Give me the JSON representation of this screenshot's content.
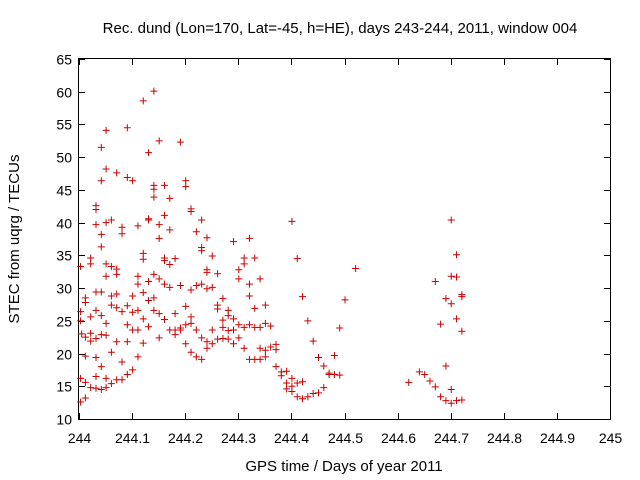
{
  "chart_data": {
    "type": "scatter",
    "title": "Rec. dund (Lon=170, Lat=-45, h=HE), days 243-244, 2011, window 004",
    "xlabel": "GPS time / Days of year 2011",
    "ylabel": "STEC from uqrg / TECUs",
    "xlim": [
      244,
      245
    ],
    "ylim": [
      10,
      65
    ],
    "x_ticks": [
      244,
      244.1,
      244.2,
      244.3,
      244.4,
      244.5,
      244.6,
      244.7,
      244.8,
      244.9,
      245
    ],
    "x_tick_labels": [
      "244",
      "244.1",
      "244.2",
      "244.3",
      "244.4",
      "244.5",
      "244.6",
      "244.7",
      "244.8",
      "244.9",
      "245"
    ],
    "y_ticks": [
      10,
      15,
      20,
      25,
      30,
      35,
      40,
      45,
      50,
      55,
      60,
      65
    ],
    "y_tick_labels": [
      "10",
      "15",
      "20",
      "25",
      "30",
      "35",
      "40",
      "45",
      "50",
      "55",
      "60",
      "65"
    ],
    "grid": false,
    "marker": "plus",
    "color": "#cc0000",
    "points": [
      [
        244.003,
        33.3
      ],
      [
        244.003,
        16.2
      ],
      [
        244.003,
        12.6
      ],
      [
        244.003,
        25.0
      ],
      [
        244.003,
        26.4
      ],
      [
        244.005,
        23.0
      ],
      [
        244.012,
        28.5
      ],
      [
        244.012,
        27.8
      ],
      [
        244.012,
        22.5
      ],
      [
        244.012,
        19.6
      ],
      [
        244.012,
        15.6
      ],
      [
        244.012,
        13.2
      ],
      [
        244.022,
        34.6
      ],
      [
        244.022,
        33.7
      ],
      [
        244.022,
        25.6
      ],
      [
        244.022,
        23.1
      ],
      [
        244.022,
        21.9
      ],
      [
        244.022,
        14.8
      ],
      [
        244.032,
        42.6
      ],
      [
        244.032,
        42.0
      ],
      [
        244.032,
        39.7
      ],
      [
        244.032,
        29.4
      ],
      [
        244.032,
        26.6
      ],
      [
        244.032,
        22.3
      ],
      [
        244.032,
        19.4
      ],
      [
        244.032,
        16.5
      ],
      [
        244.032,
        14.7
      ],
      [
        244.042,
        51.5
      ],
      [
        244.042,
        46.4
      ],
      [
        244.042,
        38.2
      ],
      [
        244.042,
        36.3
      ],
      [
        244.042,
        29.4
      ],
      [
        244.042,
        25.8
      ],
      [
        244.042,
        22.9
      ],
      [
        244.042,
        18.0
      ],
      [
        244.042,
        14.5
      ],
      [
        244.051,
        54.1
      ],
      [
        244.051,
        48.2
      ],
      [
        244.051,
        40.0
      ],
      [
        244.051,
        33.7
      ],
      [
        244.051,
        31.8
      ],
      [
        244.051,
        24.6
      ],
      [
        244.051,
        22.8
      ],
      [
        244.051,
        16.2
      ],
      [
        244.051,
        14.8
      ],
      [
        244.061,
        40.4
      ],
      [
        244.061,
        33.3
      ],
      [
        244.061,
        28.8
      ],
      [
        244.061,
        27.4
      ],
      [
        244.061,
        20.2
      ],
      [
        244.061,
        15.4
      ],
      [
        244.071,
        47.6
      ],
      [
        244.071,
        32.9
      ],
      [
        244.071,
        32.1
      ],
      [
        244.071,
        29.1
      ],
      [
        244.071,
        27.0
      ],
      [
        244.071,
        21.8
      ],
      [
        244.071,
        16.0
      ],
      [
        244.081,
        39.3
      ],
      [
        244.081,
        38.3
      ],
      [
        244.081,
        26.4
      ],
      [
        244.081,
        18.7
      ],
      [
        244.081,
        16.0
      ],
      [
        244.091,
        54.5
      ],
      [
        244.091,
        46.9
      ],
      [
        244.091,
        27.3
      ],
      [
        244.091,
        24.4
      ],
      [
        244.091,
        21.8
      ],
      [
        244.091,
        16.8
      ],
      [
        244.101,
        46.4
      ],
      [
        244.101,
        28.8
      ],
      [
        244.101,
        26.3
      ],
      [
        244.101,
        23.6
      ],
      [
        244.101,
        17.5
      ],
      [
        244.111,
        39.5
      ],
      [
        244.111,
        31.8
      ],
      [
        244.111,
        30.6
      ],
      [
        244.111,
        26.6
      ],
      [
        244.111,
        23.6
      ],
      [
        244.111,
        19.5
      ],
      [
        244.121,
        58.6
      ],
      [
        244.121,
        35.3
      ],
      [
        244.121,
        34.4
      ],
      [
        244.121,
        29.3
      ],
      [
        244.121,
        25.3
      ],
      [
        244.121,
        21.6
      ],
      [
        244.131,
        50.7
      ],
      [
        244.131,
        40.6
      ],
      [
        244.131,
        40.4
      ],
      [
        244.131,
        31.0
      ],
      [
        244.131,
        28.1
      ],
      [
        244.131,
        24.1
      ],
      [
        244.141,
        60.1
      ],
      [
        244.141,
        45.7
      ],
      [
        244.141,
        45.1
      ],
      [
        244.141,
        43.9
      ],
      [
        244.141,
        32.1
      ],
      [
        244.141,
        28.5
      ],
      [
        244.141,
        26.6
      ],
      [
        244.151,
        52.5
      ],
      [
        244.151,
        39.7
      ],
      [
        244.151,
        37.6
      ],
      [
        244.151,
        31.4
      ],
      [
        244.151,
        26.1
      ],
      [
        244.151,
        22.4
      ],
      [
        244.161,
        45.7
      ],
      [
        244.161,
        41.1
      ],
      [
        244.161,
        34.6
      ],
      [
        244.161,
        34.2
      ],
      [
        244.161,
        30.6
      ],
      [
        244.161,
        25.2
      ],
      [
        244.171,
        43.7
      ],
      [
        244.171,
        38.9
      ],
      [
        244.171,
        33.6
      ],
      [
        244.171,
        30.1
      ],
      [
        244.171,
        23.6
      ],
      [
        244.181,
        34.5
      ],
      [
        244.181,
        26.1
      ],
      [
        244.181,
        22.9
      ],
      [
        244.181,
        23.6
      ],
      [
        244.191,
        52.3
      ],
      [
        244.191,
        30.4
      ],
      [
        244.191,
        23.6
      ],
      [
        244.191,
        23.9
      ],
      [
        244.201,
        46.4
      ],
      [
        244.201,
        45.5
      ],
      [
        244.201,
        27.2
      ],
      [
        244.201,
        24.4
      ],
      [
        244.201,
        21.5
      ],
      [
        244.211,
        42.1
      ],
      [
        244.211,
        41.7
      ],
      [
        244.211,
        29.7
      ],
      [
        244.211,
        25.6
      ],
      [
        244.211,
        24.6
      ],
      [
        244.211,
        20.2
      ],
      [
        244.221,
        38.6
      ],
      [
        244.221,
        30.4
      ],
      [
        244.221,
        23.6
      ],
      [
        244.221,
        19.5
      ],
      [
        244.231,
        40.4
      ],
      [
        244.231,
        36.2
      ],
      [
        244.231,
        35.7
      ],
      [
        244.231,
        30.6
      ],
      [
        244.231,
        22.4
      ],
      [
        244.231,
        19.1
      ],
      [
        244.241,
        37.7
      ],
      [
        244.241,
        32.8
      ],
      [
        244.241,
        32.4
      ],
      [
        244.241,
        29.9
      ],
      [
        244.241,
        21.8
      ],
      [
        244.241,
        20.8
      ],
      [
        244.251,
        34.9
      ],
      [
        244.251,
        30.1
      ],
      [
        244.251,
        23.6
      ],
      [
        244.251,
        21.5
      ],
      [
        244.261,
        32.2
      ],
      [
        244.261,
        27.4
      ],
      [
        244.261,
        26.8
      ],
      [
        244.261,
        22.2
      ],
      [
        244.271,
        28.4
      ],
      [
        244.271,
        25.1
      ],
      [
        244.271,
        24.0
      ],
      [
        244.271,
        22.3
      ],
      [
        244.281,
        26.6
      ],
      [
        244.281,
        25.8
      ],
      [
        244.281,
        23.5
      ],
      [
        244.281,
        22.2
      ],
      [
        244.291,
        37.1
      ],
      [
        244.291,
        25.3
      ],
      [
        244.291,
        23.6
      ],
      [
        244.291,
        21.5
      ],
      [
        244.301,
        32.8
      ],
      [
        244.301,
        31.4
      ],
      [
        244.301,
        24.4
      ],
      [
        244.301,
        22.4
      ],
      [
        244.311,
        34.6
      ],
      [
        244.311,
        33.7
      ],
      [
        244.311,
        24.0
      ],
      [
        244.311,
        20.8
      ],
      [
        244.321,
        37.6
      ],
      [
        244.321,
        30.6
      ],
      [
        244.321,
        28.8
      ],
      [
        244.321,
        24.4
      ],
      [
        244.321,
        19.1
      ],
      [
        244.331,
        34.6
      ],
      [
        244.331,
        26.9
      ],
      [
        244.331,
        24.0
      ],
      [
        244.331,
        19.1
      ],
      [
        244.341,
        31.4
      ],
      [
        244.341,
        24.0
      ],
      [
        244.341,
        20.8
      ],
      [
        244.341,
        19.1
      ],
      [
        244.351,
        27.4
      ],
      [
        244.351,
        24.6
      ],
      [
        244.351,
        20.5
      ],
      [
        244.351,
        19.5
      ],
      [
        244.361,
        24.2
      ],
      [
        244.361,
        21.0
      ],
      [
        244.371,
        21.4
      ],
      [
        244.371,
        20.6
      ],
      [
        244.371,
        18.0
      ],
      [
        244.381,
        17.2
      ],
      [
        244.381,
        16.6
      ],
      [
        244.391,
        17.3
      ],
      [
        244.391,
        15.5
      ],
      [
        244.391,
        14.6
      ],
      [
        244.401,
        40.2
      ],
      [
        244.401,
        16.2
      ],
      [
        244.401,
        15.0
      ],
      [
        244.401,
        14.2
      ],
      [
        244.411,
        34.5
      ],
      [
        244.411,
        15.5
      ],
      [
        244.411,
        13.4
      ],
      [
        244.421,
        28.7
      ],
      [
        244.421,
        15.7
      ],
      [
        244.421,
        13.1
      ],
      [
        244.431,
        25.0
      ],
      [
        244.431,
        13.4
      ],
      [
        244.441,
        21.9
      ],
      [
        244.441,
        13.9
      ],
      [
        244.451,
        19.4
      ],
      [
        244.451,
        14.0
      ],
      [
        244.461,
        18.1
      ],
      [
        244.461,
        14.8
      ],
      [
        244.471,
        17.0
      ],
      [
        244.471,
        16.8
      ],
      [
        244.481,
        19.7
      ],
      [
        244.481,
        16.8
      ],
      [
        244.491,
        23.9
      ],
      [
        244.491,
        16.7
      ],
      [
        244.501,
        28.2
      ],
      [
        244.521,
        33.0
      ],
      [
        244.621,
        15.6
      ],
      [
        244.641,
        17.2
      ],
      [
        244.651,
        16.8
      ],
      [
        244.661,
        15.8
      ],
      [
        244.671,
        31.0
      ],
      [
        244.671,
        14.9
      ],
      [
        244.681,
        24.5
      ],
      [
        244.681,
        13.4
      ],
      [
        244.691,
        28.4
      ],
      [
        244.691,
        18.1
      ],
      [
        244.691,
        12.8
      ],
      [
        244.701,
        40.4
      ],
      [
        244.701,
        31.8
      ],
      [
        244.701,
        27.6
      ],
      [
        244.701,
        14.5
      ],
      [
        244.701,
        12.4
      ],
      [
        244.711,
        35.1
      ],
      [
        244.711,
        31.7
      ],
      [
        244.711,
        25.3
      ],
      [
        244.711,
        12.8
      ],
      [
        244.721,
        29.0
      ],
      [
        244.721,
        28.7
      ],
      [
        244.721,
        23.4
      ],
      [
        244.721,
        12.9
      ]
    ]
  }
}
